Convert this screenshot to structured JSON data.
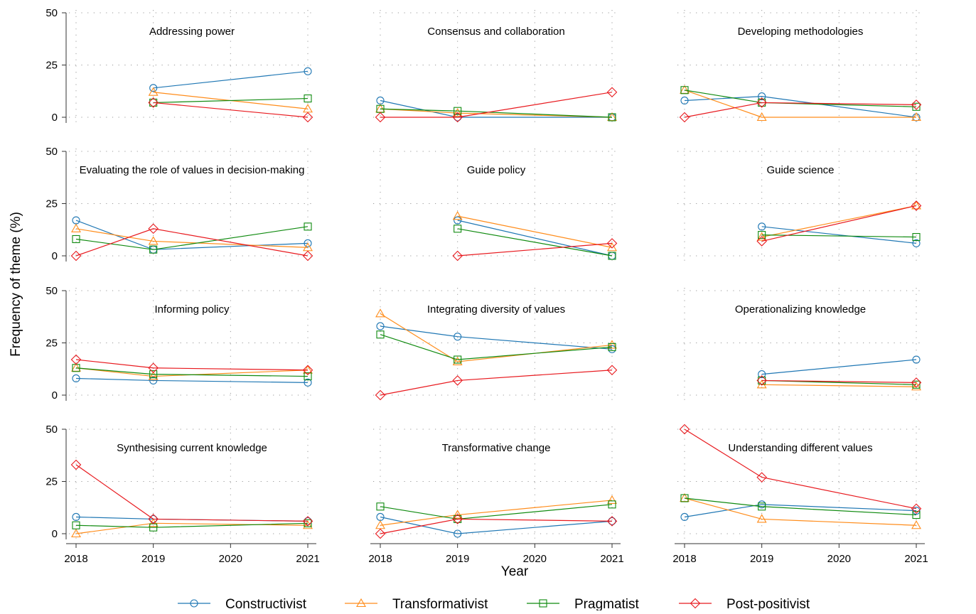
{
  "chart_data": {
    "type": "line",
    "layout": "small-multiples",
    "ylabel": "Frequency of theme (%)",
    "xlabel": "Year",
    "x": [
      2018,
      2019,
      2020,
      2021
    ],
    "x_ticks": [
      "2018",
      "2019",
      "2020",
      "2021"
    ],
    "y_ticks": [
      "0",
      "25",
      "50"
    ],
    "ylim": [
      0,
      50
    ],
    "grid": "dotted",
    "legend_position": "bottom",
    "legend": [
      {
        "name": "Constructivist",
        "color": "#1f77b4",
        "marker": "circle"
      },
      {
        "name": "Transformativist",
        "color": "#ff8c1a",
        "marker": "triangle"
      },
      {
        "name": "Pragmatist",
        "color": "#0f8a0f",
        "marker": "square"
      },
      {
        "name": "Post-positivist",
        "color": "#e8191e",
        "marker": "diamond"
      }
    ],
    "panels": [
      {
        "title": "Addressing power",
        "series": [
          {
            "name": "Constructivist",
            "points": [
              [
                2019,
                14
              ],
              [
                2021,
                22
              ]
            ]
          },
          {
            "name": "Transformativist",
            "points": [
              [
                2019,
                12
              ],
              [
                2021,
                4
              ]
            ]
          },
          {
            "name": "Pragmatist",
            "points": [
              [
                2019,
                7
              ],
              [
                2021,
                9
              ]
            ]
          },
          {
            "name": "Post-positivist",
            "points": [
              [
                2019,
                7
              ],
              [
                2021,
                0
              ]
            ]
          }
        ]
      },
      {
        "title": "Consensus and collaboration",
        "series": [
          {
            "name": "Constructivist",
            "points": [
              [
                2018,
                8
              ],
              [
                2019,
                0
              ],
              [
                2021,
                0
              ]
            ]
          },
          {
            "name": "Transformativist",
            "points": [
              [
                2018,
                4
              ],
              [
                2019,
                2
              ],
              [
                2021,
                0
              ]
            ]
          },
          {
            "name": "Pragmatist",
            "points": [
              [
                2018,
                4
              ],
              [
                2019,
                3
              ],
              [
                2021,
                0
              ]
            ]
          },
          {
            "name": "Post-positivist",
            "points": [
              [
                2018,
                0
              ],
              [
                2019,
                0
              ],
              [
                2021,
                12
              ]
            ]
          }
        ]
      },
      {
        "title": "Developing methodologies",
        "series": [
          {
            "name": "Constructivist",
            "points": [
              [
                2018,
                8
              ],
              [
                2019,
                10
              ],
              [
                2021,
                0
              ]
            ]
          },
          {
            "name": "Transformativist",
            "points": [
              [
                2018,
                13
              ],
              [
                2019,
                0
              ],
              [
                2021,
                0
              ]
            ]
          },
          {
            "name": "Pragmatist",
            "points": [
              [
                2018,
                13
              ],
              [
                2019,
                7
              ],
              [
                2021,
                5
              ]
            ]
          },
          {
            "name": "Post-positivist",
            "points": [
              [
                2018,
                0
              ],
              [
                2019,
                7
              ],
              [
                2021,
                6
              ]
            ]
          }
        ]
      },
      {
        "title": "Evaluating the role of values in decision-making",
        "series": [
          {
            "name": "Constructivist",
            "points": [
              [
                2018,
                17
              ],
              [
                2019,
                3
              ],
              [
                2021,
                6
              ]
            ]
          },
          {
            "name": "Transformativist",
            "points": [
              [
                2018,
                13
              ],
              [
                2019,
                7
              ],
              [
                2021,
                4
              ]
            ]
          },
          {
            "name": "Pragmatist",
            "points": [
              [
                2018,
                8
              ],
              [
                2019,
                3
              ],
              [
                2021,
                14
              ]
            ]
          },
          {
            "name": "Post-positivist",
            "points": [
              [
                2018,
                0
              ],
              [
                2019,
                13
              ],
              [
                2021,
                0
              ]
            ]
          }
        ]
      },
      {
        "title": "Guide policy",
        "series": [
          {
            "name": "Constructivist",
            "points": [
              [
                2019,
                17
              ],
              [
                2021,
                0
              ]
            ]
          },
          {
            "name": "Transformativist",
            "points": [
              [
                2019,
                19
              ],
              [
                2021,
                4
              ]
            ]
          },
          {
            "name": "Pragmatist",
            "points": [
              [
                2019,
                13
              ],
              [
                2021,
                0
              ]
            ]
          },
          {
            "name": "Post-positivist",
            "points": [
              [
                2019,
                0
              ],
              [
                2021,
                6
              ]
            ]
          }
        ]
      },
      {
        "title": "Guide science",
        "series": [
          {
            "name": "Constructivist",
            "points": [
              [
                2019,
                14
              ],
              [
                2021,
                6
              ]
            ]
          },
          {
            "name": "Transformativist",
            "points": [
              [
                2019,
                9
              ],
              [
                2021,
                24
              ]
            ]
          },
          {
            "name": "Pragmatist",
            "points": [
              [
                2019,
                10
              ],
              [
                2021,
                9
              ]
            ]
          },
          {
            "name": "Post-positivist",
            "points": [
              [
                2019,
                7
              ],
              [
                2021,
                24
              ]
            ]
          }
        ]
      },
      {
        "title": "Informing policy",
        "series": [
          {
            "name": "Constructivist",
            "points": [
              [
                2018,
                8
              ],
              [
                2019,
                7
              ],
              [
                2021,
                6
              ]
            ]
          },
          {
            "name": "Transformativist",
            "points": [
              [
                2018,
                13
              ],
              [
                2019,
                9
              ],
              [
                2021,
                12
              ]
            ]
          },
          {
            "name": "Pragmatist",
            "points": [
              [
                2018,
                13
              ],
              [
                2019,
                10
              ],
              [
                2021,
                9
              ]
            ]
          },
          {
            "name": "Post-positivist",
            "points": [
              [
                2018,
                17
              ],
              [
                2019,
                13
              ],
              [
                2021,
                12
              ]
            ]
          }
        ]
      },
      {
        "title": "Integrating diversity of values",
        "series": [
          {
            "name": "Constructivist",
            "points": [
              [
                2018,
                33
              ],
              [
                2019,
                28
              ],
              [
                2021,
                22
              ]
            ]
          },
          {
            "name": "Transformativist",
            "points": [
              [
                2018,
                39
              ],
              [
                2019,
                16
              ],
              [
                2021,
                24
              ]
            ]
          },
          {
            "name": "Pragmatist",
            "points": [
              [
                2018,
                29
              ],
              [
                2019,
                17
              ],
              [
                2021,
                23
              ]
            ]
          },
          {
            "name": "Post-positivist",
            "points": [
              [
                2018,
                0
              ],
              [
                2019,
                7
              ],
              [
                2021,
                12
              ]
            ]
          }
        ]
      },
      {
        "title": "Operationalizing knowledge",
        "series": [
          {
            "name": "Constructivist",
            "points": [
              [
                2019,
                10
              ],
              [
                2021,
                17
              ]
            ]
          },
          {
            "name": "Transformativist",
            "points": [
              [
                2019,
                5
              ],
              [
                2021,
                4
              ]
            ]
          },
          {
            "name": "Pragmatist",
            "points": [
              [
                2019,
                7
              ],
              [
                2021,
                5
              ]
            ]
          },
          {
            "name": "Post-positivist",
            "points": [
              [
                2019,
                7
              ],
              [
                2021,
                6
              ]
            ]
          }
        ]
      },
      {
        "title": "Synthesising current knowledge",
        "series": [
          {
            "name": "Constructivist",
            "points": [
              [
                2018,
                8
              ],
              [
                2019,
                7
              ],
              [
                2021,
                6
              ]
            ]
          },
          {
            "name": "Transformativist",
            "points": [
              [
                2018,
                0
              ],
              [
                2019,
                5
              ],
              [
                2021,
                4
              ]
            ]
          },
          {
            "name": "Pragmatist",
            "points": [
              [
                2018,
                4
              ],
              [
                2019,
                3
              ],
              [
                2021,
                5
              ]
            ]
          },
          {
            "name": "Post-positivist",
            "points": [
              [
                2018,
                33
              ],
              [
                2019,
                7
              ],
              [
                2021,
                6
              ]
            ]
          }
        ]
      },
      {
        "title": "Transformative change",
        "series": [
          {
            "name": "Constructivist",
            "points": [
              [
                2018,
                8
              ],
              [
                2019,
                0
              ],
              [
                2021,
                6
              ]
            ]
          },
          {
            "name": "Transformativist",
            "points": [
              [
                2018,
                4
              ],
              [
                2019,
                9
              ],
              [
                2021,
                16
              ]
            ]
          },
          {
            "name": "Pragmatist",
            "points": [
              [
                2018,
                13
              ],
              [
                2019,
                7
              ],
              [
                2021,
                14
              ]
            ]
          },
          {
            "name": "Post-positivist",
            "points": [
              [
                2018,
                0
              ],
              [
                2019,
                7
              ],
              [
                2021,
                6
              ]
            ]
          }
        ]
      },
      {
        "title": "Understanding different values",
        "series": [
          {
            "name": "Constructivist",
            "points": [
              [
                2018,
                8
              ],
              [
                2019,
                14
              ],
              [
                2021,
                11
              ]
            ]
          },
          {
            "name": "Transformativist",
            "points": [
              [
                2018,
                17
              ],
              [
                2019,
                7
              ],
              [
                2021,
                4
              ]
            ]
          },
          {
            "name": "Pragmatist",
            "points": [
              [
                2018,
                17
              ],
              [
                2019,
                13
              ],
              [
                2021,
                9
              ]
            ]
          },
          {
            "name": "Post-positivist",
            "points": [
              [
                2018,
                50
              ],
              [
                2019,
                27
              ],
              [
                2021,
                12
              ]
            ]
          }
        ]
      }
    ]
  }
}
